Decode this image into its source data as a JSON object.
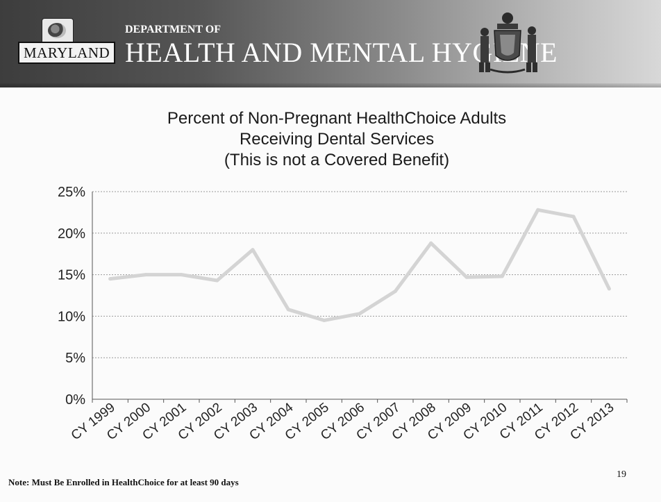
{
  "header": {
    "logo_text": "MARYLAND",
    "department_of": "DEPARTMENT OF",
    "department_name": "HEALTH AND MENTAL HYGIENE"
  },
  "chart_data": {
    "type": "line",
    "title_lines": [
      "Percent of Non-Pregnant HealthChoice Adults",
      "Receiving Dental Services",
      "(This is not a Covered Benefit)"
    ],
    "categories": [
      "CY 1999",
      "CY 2000",
      "CY 2001",
      "CY 2002",
      "CY 2003",
      "CY 2004",
      "CY 2005",
      "CY 2006",
      "CY 2007",
      "CY 2008",
      "CY 2009",
      "CY 2010",
      "CY 2011",
      "CY 2012",
      "CY 2013"
    ],
    "series": [
      {
        "values": [
          14.5,
          15.0,
          15.0,
          14.3,
          18.0,
          10.8,
          9.5,
          10.3,
          13.0,
          18.8,
          14.7,
          14.8,
          22.8,
          22.0,
          13.3
        ]
      }
    ],
    "y_ticks": [
      "0%",
      "5%",
      "10%",
      "15%",
      "20%",
      "25%"
    ],
    "ylim": [
      0,
      25
    ],
    "grid": true,
    "colors": {
      "line": "#d4d4d4",
      "grid": "#9a9a9a",
      "axis": "#555555",
      "text": "#222222"
    }
  },
  "footnote": "Note: Must Be Enrolled in HealthChoice for at least 90 days",
  "page_number": "19"
}
